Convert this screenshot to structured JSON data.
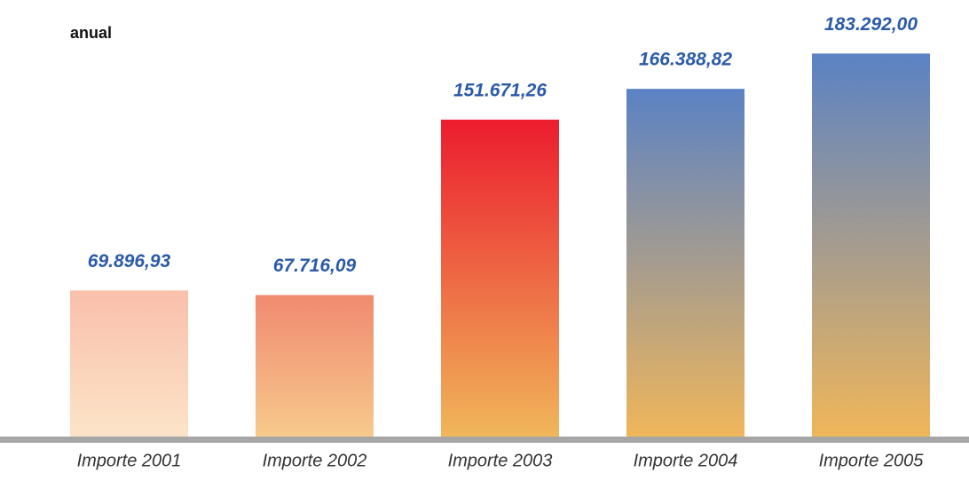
{
  "chart_data": {
    "type": "bar",
    "subtitle": "anual",
    "categories": [
      "Importe 2001",
      "Importe 2002",
      "Importe 2003",
      "Importe 2004",
      "Importe 2005"
    ],
    "values": [
      69896.93,
      67716.09,
      151671.26,
      166388.82,
      183292.0
    ],
    "value_labels": [
      "69.896,93",
      "67.716,09",
      "151.671,26",
      "166.388,82",
      "183.292,00"
    ],
    "gradients": [
      [
        "#f9bfab",
        "#fce4c8"
      ],
      [
        "#f08a70",
        "#f7c98c"
      ],
      [
        "#ec1c2e",
        "#f0b65a"
      ],
      [
        "#5a82c4",
        "#f0b65a"
      ],
      [
        "#5a82c4",
        "#f0b65a"
      ]
    ],
    "label_color": "#2b5ba8",
    "ylim": [
      0,
      200000
    ]
  }
}
